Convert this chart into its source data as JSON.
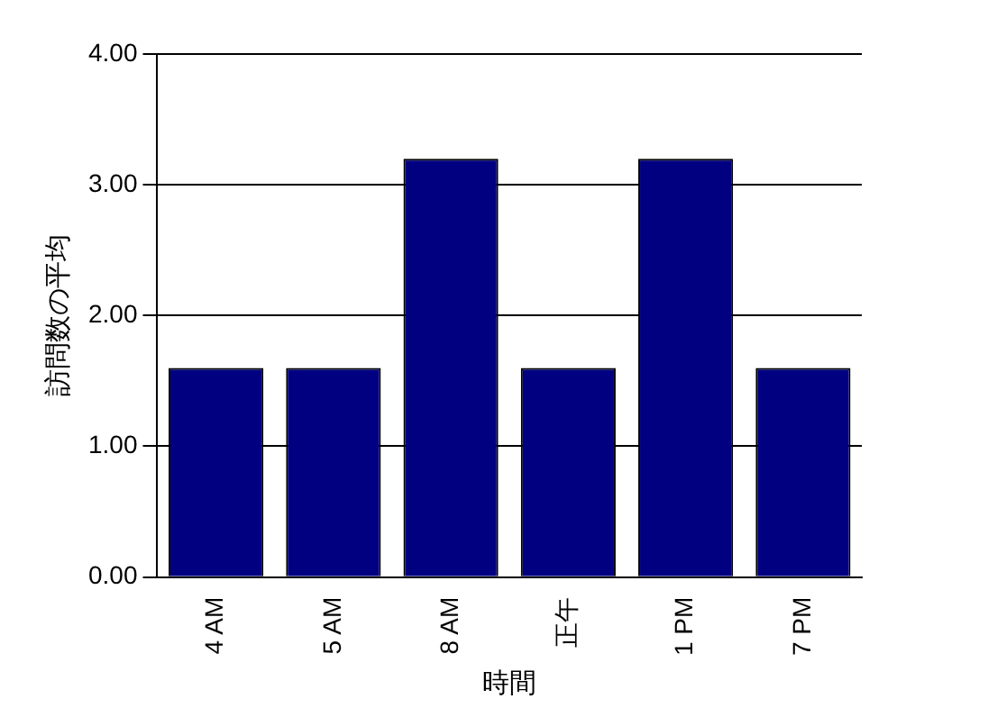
{
  "chart_data": {
    "type": "bar",
    "xlabel": "時間",
    "ylabel": "訪問数の平均",
    "categories": [
      "4 AM",
      "5 AM",
      "8 AM",
      "正午",
      "1 PM",
      "7 PM"
    ],
    "values": [
      1.6,
      1.6,
      3.2,
      1.6,
      3.2,
      1.6
    ],
    "color": "#000080",
    "ylim": [
      0,
      4
    ],
    "yticks": [
      {
        "value": 0,
        "label": "0.00"
      },
      {
        "value": 1,
        "label": "1.00"
      },
      {
        "value": 2,
        "label": "2.00"
      },
      {
        "value": 3,
        "label": "3.00"
      },
      {
        "value": 4,
        "label": "4.00"
      }
    ],
    "grid": "y",
    "legend": false
  }
}
